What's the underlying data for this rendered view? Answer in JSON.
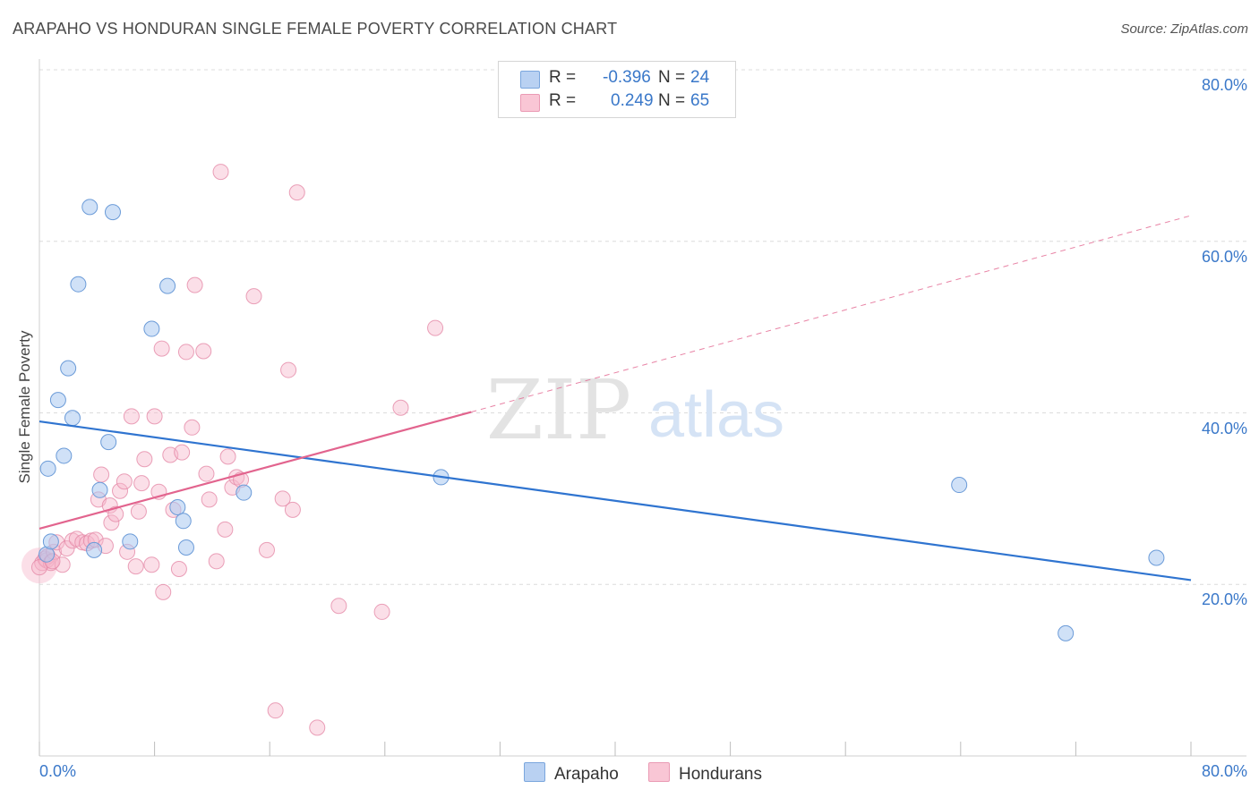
{
  "title": "ARAPAHO VS HONDURAN SINGLE FEMALE POVERTY CORRELATION CHART",
  "source": "Source: ZipAtlas.com",
  "watermark": {
    "part1": "ZIP",
    "part2": "atlas"
  },
  "legend": {
    "rows": [
      {
        "r_label": "R =",
        "r_value": "-0.396",
        "n_label": "N =",
        "n_value": "24"
      },
      {
        "r_label": "R =",
        "r_value": "0.249",
        "n_label": "N =",
        "n_value": "65"
      }
    ]
  },
  "colors": {
    "arapaho_fill": "#aac8f0",
    "arapaho_stroke": "#6b9bd8",
    "arapaho_line": "#2f74d0",
    "honduran_fill": "#f7b9cc",
    "honduran_stroke": "#e58aa7",
    "honduran_line": "#e2648e",
    "tick_label": "#3a78c9",
    "grid": "#dcdcdc"
  },
  "chart_data": {
    "type": "scatter",
    "title": "ARAPAHO VS HONDURAN SINGLE FEMALE POVERTY CORRELATION CHART",
    "xlabel": "",
    "ylabel": "Single Female Poverty",
    "xlim": [
      0,
      80
    ],
    "ylim": [
      0,
      80
    ],
    "x_tick_labels": [
      "0.0%",
      "80.0%"
    ],
    "y_tick_labels": [
      "20.0%",
      "40.0%",
      "60.0%",
      "80.0%"
    ],
    "y_ticks": [
      20,
      40,
      60,
      80
    ],
    "grid": true,
    "legend_position": "bottom-center",
    "series": [
      {
        "name": "Arapaho",
        "color": "#aac8f0",
        "points": [
          [
            0.5,
            23.5
          ],
          [
            0.6,
            33.5
          ],
          [
            0.8,
            25
          ],
          [
            1.3,
            41.5
          ],
          [
            1.7,
            35
          ],
          [
            2.0,
            45.2
          ],
          [
            2.3,
            39.4
          ],
          [
            2.7,
            55
          ],
          [
            3.5,
            64
          ],
          [
            3.8,
            24
          ],
          [
            4.2,
            31
          ],
          [
            4.8,
            36.6
          ],
          [
            5.1,
            63.4
          ],
          [
            6.3,
            25
          ],
          [
            7.8,
            49.8
          ],
          [
            8.9,
            54.8
          ],
          [
            9.6,
            29
          ],
          [
            10.0,
            27.4
          ],
          [
            10.2,
            24.3
          ],
          [
            14.2,
            30.7
          ],
          [
            27.9,
            32.5
          ],
          [
            63.9,
            31.6
          ],
          [
            71.3,
            14.3
          ],
          [
            77.6,
            23.1
          ]
        ],
        "trend": {
          "x": [
            0,
            80
          ],
          "y": [
            39.0,
            20.5
          ],
          "style": "solid"
        }
      },
      {
        "name": "Hondurans",
        "color": "#f7b9cc",
        "points": [
          [
            0.2,
            22.5
          ],
          [
            0.4,
            23
          ],
          [
            0.5,
            22.8
          ],
          [
            0.6,
            23.3
          ],
          [
            0.8,
            22.5
          ],
          [
            1.0,
            23.8
          ],
          [
            1.2,
            24.9
          ],
          [
            1.6,
            22.3
          ],
          [
            1.9,
            24.2
          ],
          [
            2.3,
            25.1
          ],
          [
            2.6,
            25.3
          ],
          [
            3.0,
            24.9
          ],
          [
            3.3,
            24.8
          ],
          [
            3.6,
            25.1
          ],
          [
            3.9,
            25.2
          ],
          [
            4.1,
            29.9
          ],
          [
            4.3,
            32.8
          ],
          [
            4.6,
            24.5
          ],
          [
            4.9,
            29.2
          ],
          [
            5.0,
            27.2
          ],
          [
            5.3,
            28.2
          ],
          [
            5.6,
            30.9
          ],
          [
            5.9,
            32
          ],
          [
            6.1,
            23.8
          ],
          [
            6.4,
            39.6
          ],
          [
            6.7,
            22.1
          ],
          [
            6.9,
            28.5
          ],
          [
            7.1,
            31.8
          ],
          [
            7.3,
            34.6
          ],
          [
            7.8,
            22.3
          ],
          [
            8.0,
            39.6
          ],
          [
            8.3,
            30.8
          ],
          [
            8.5,
            47.5
          ],
          [
            8.6,
            19.1
          ],
          [
            9.1,
            35.1
          ],
          [
            9.3,
            28.7
          ],
          [
            9.7,
            21.8
          ],
          [
            9.9,
            35.4
          ],
          [
            10.2,
            47.1
          ],
          [
            10.6,
            38.3
          ],
          [
            10.8,
            54.9
          ],
          [
            11.4,
            47.2
          ],
          [
            11.6,
            32.9
          ],
          [
            11.8,
            29.9
          ],
          [
            12.3,
            22.7
          ],
          [
            12.6,
            68.1
          ],
          [
            12.9,
            26.4
          ],
          [
            13.1,
            34.9
          ],
          [
            13.4,
            31.3
          ],
          [
            13.7,
            32.5
          ],
          [
            14.0,
            32.2
          ],
          [
            14.9,
            53.6
          ],
          [
            15.8,
            24
          ],
          [
            16.4,
            5.3
          ],
          [
            16.9,
            30
          ],
          [
            17.3,
            45
          ],
          [
            17.6,
            28.7
          ],
          [
            17.9,
            65.7
          ],
          [
            19.3,
            3.3
          ],
          [
            20.8,
            17.5
          ],
          [
            23.8,
            16.8
          ],
          [
            25.1,
            40.6
          ],
          [
            27.5,
            49.9
          ],
          [
            0.0,
            22.0
          ],
          [
            0.9,
            22.7
          ]
        ],
        "trend_solid": {
          "x": [
            0,
            30
          ],
          "y": [
            26.5,
            40.1
          ]
        },
        "trend_dashed": {
          "x": [
            30,
            80
          ],
          "y": [
            40.1,
            63.0
          ]
        }
      }
    ]
  }
}
